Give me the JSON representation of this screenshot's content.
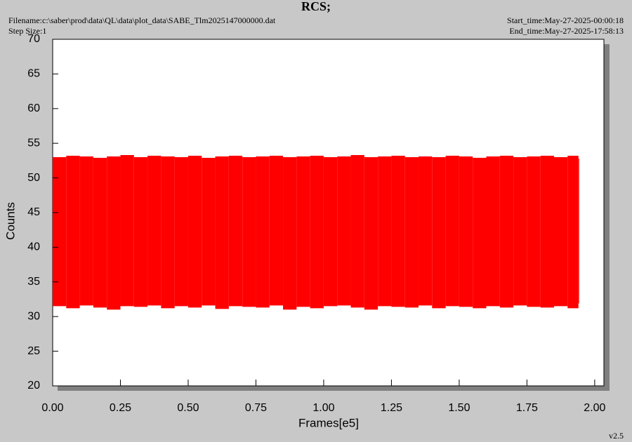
{
  "chart_data": {
    "type": "range",
    "title": "RCS;",
    "filename": "Filename:c:\\saber\\prod\\data\\QL\\data\\plot_data\\SABE_Tlm2025147000000.dat",
    "step_size": "Step Size:1",
    "start_time": "Start_time:May-27-2025-00:00:18",
    "end_time": "End_time:May-27-2025-17:58:13",
    "version": "v2.5",
    "x_label": "Frames[e5]",
    "y_label": "Counts",
    "color": "#ff0000",
    "x": [
      0,
      0.05,
      0.1,
      0.15,
      0.2,
      0.25,
      0.3,
      0.35,
      0.4,
      0.45,
      0.5,
      0.55,
      0.6,
      0.65,
      0.7,
      0.75,
      0.8,
      0.85,
      0.9,
      0.95,
      1.0,
      1.05,
      1.1,
      1.15,
      1.2,
      1.25,
      1.3,
      1.35,
      1.4,
      1.45,
      1.5,
      1.55,
      1.6,
      1.65,
      1.7,
      1.75,
      1.8,
      1.85,
      1.9,
      1.94
    ],
    "high": [
      53.0,
      53.2,
      53.1,
      52.9,
      53.1,
      53.3,
      53.0,
      53.2,
      53.1,
      53.0,
      53.2,
      52.9,
      53.1,
      53.2,
      53.0,
      53.1,
      53.2,
      53.0,
      53.1,
      53.2,
      53.0,
      53.1,
      53.3,
      53.0,
      53.1,
      53.2,
      53.0,
      53.1,
      53.0,
      53.2,
      53.1,
      52.9,
      53.1,
      53.2,
      53.0,
      53.1,
      53.2,
      53.0,
      53.2,
      52.8
    ],
    "low": [
      31.5,
      31.2,
      31.6,
      31.3,
      31.0,
      31.5,
      31.4,
      31.6,
      31.2,
      31.5,
      31.3,
      31.6,
      31.1,
      31.5,
      31.4,
      31.3,
      31.6,
      31.0,
      31.4,
      31.2,
      31.5,
      31.6,
      31.3,
      31.0,
      31.5,
      31.4,
      31.3,
      31.6,
      31.2,
      31.5,
      31.4,
      31.2,
      31.5,
      31.3,
      31.6,
      31.4,
      31.3,
      31.5,
      31.2,
      31.9
    ],
    "xlim": [
      0,
      2.034
    ],
    "ylim": [
      20,
      70
    ],
    "xticks": [
      {
        "value": 0,
        "label": "0.00"
      },
      {
        "value": 0.25,
        "label": "0.25"
      },
      {
        "value": 0.5,
        "label": "0.50"
      },
      {
        "value": 0.75,
        "label": "0.75"
      },
      {
        "value": 1.0,
        "label": "1.00"
      },
      {
        "value": 1.25,
        "label": "1.25"
      },
      {
        "value": 1.5,
        "label": "1.50"
      },
      {
        "value": 1.75,
        "label": "1.75"
      },
      {
        "value": 2.0,
        "label": "2.00"
      }
    ],
    "yticks": [
      20,
      25,
      30,
      35,
      40,
      45,
      50,
      55,
      60,
      65,
      70
    ]
  }
}
